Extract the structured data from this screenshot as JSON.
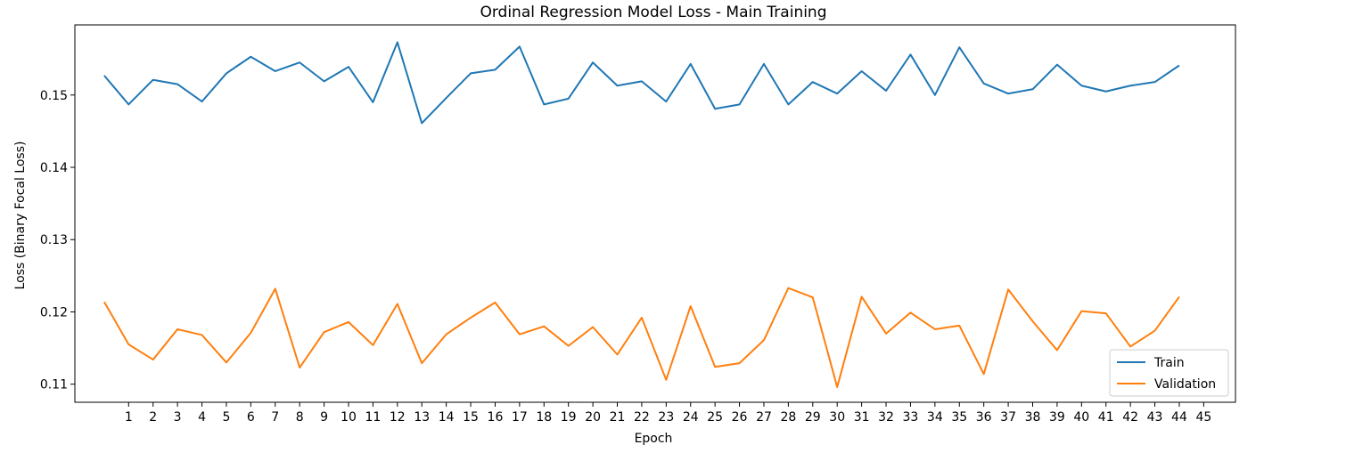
{
  "chart_data": {
    "type": "line",
    "title": "Ordinal Regression Model Loss - Main Training",
    "xlabel": "Epoch",
    "ylabel": "Loss (Binary Focal Loss)",
    "xlim": [
      -1.2,
      46.3
    ],
    "ylim": [
      0.1075,
      0.1597
    ],
    "xticks": [
      1,
      2,
      3,
      4,
      5,
      6,
      7,
      8,
      9,
      10,
      11,
      12,
      13,
      14,
      15,
      16,
      17,
      18,
      19,
      20,
      21,
      22,
      23,
      24,
      25,
      26,
      27,
      28,
      29,
      30,
      31,
      32,
      33,
      34,
      35,
      36,
      37,
      38,
      39,
      40,
      41,
      42,
      43,
      44,
      45
    ],
    "yticks": [
      0.11,
      0.12,
      0.13,
      0.14,
      0.15
    ],
    "ytick_labels": [
      "0.11",
      "0.12",
      "0.13",
      "0.14",
      "0.15"
    ],
    "grid": false,
    "legend_position": "lower-right",
    "x": [
      0,
      1,
      2,
      3,
      4,
      5,
      6,
      7,
      8,
      9,
      10,
      11,
      12,
      13,
      14,
      15,
      16,
      17,
      18,
      19,
      20,
      21,
      22,
      23,
      24,
      25,
      26,
      27,
      28,
      29,
      30,
      31,
      32,
      33,
      34,
      35,
      36,
      37,
      38,
      39,
      40,
      41,
      42,
      43,
      44
    ],
    "series": [
      {
        "name": "Train",
        "color": "#1f77b4",
        "values": [
          0.1527,
          0.1487,
          0.1521,
          0.1515,
          0.1491,
          0.153,
          0.1553,
          0.1533,
          0.1545,
          0.1519,
          0.1539,
          0.149,
          0.1573,
          0.1461,
          0.1496,
          0.153,
          0.1535,
          0.1567,
          0.1487,
          0.1495,
          0.1545,
          0.1513,
          0.1519,
          0.1491,
          0.1543,
          0.1481,
          0.1487,
          0.1543,
          0.1487,
          0.1518,
          0.1502,
          0.1533,
          0.1506,
          0.1556,
          0.15,
          0.1566,
          0.1516,
          0.1502,
          0.1508,
          0.1542,
          0.1513,
          0.1505,
          0.1513,
          0.1518,
          0.1541
        ]
      },
      {
        "name": "Validation",
        "color": "#ff7f0e",
        "values": [
          0.1214,
          0.1155,
          0.1134,
          0.1176,
          0.1168,
          0.113,
          0.1171,
          0.1232,
          0.1123,
          0.1172,
          0.1186,
          0.1154,
          0.1211,
          0.1129,
          0.1169,
          0.1192,
          0.1213,
          0.1169,
          0.118,
          0.1153,
          0.1179,
          0.1141,
          0.1192,
          0.1106,
          0.1208,
          0.1124,
          0.1129,
          0.1161,
          0.1233,
          0.122,
          0.1096,
          0.1221,
          0.117,
          0.1199,
          0.1176,
          0.1181,
          0.1114,
          0.1231,
          0.1187,
          0.1147,
          0.1201,
          0.1198,
          0.1152,
          0.1174,
          0.1221
        ]
      }
    ]
  }
}
